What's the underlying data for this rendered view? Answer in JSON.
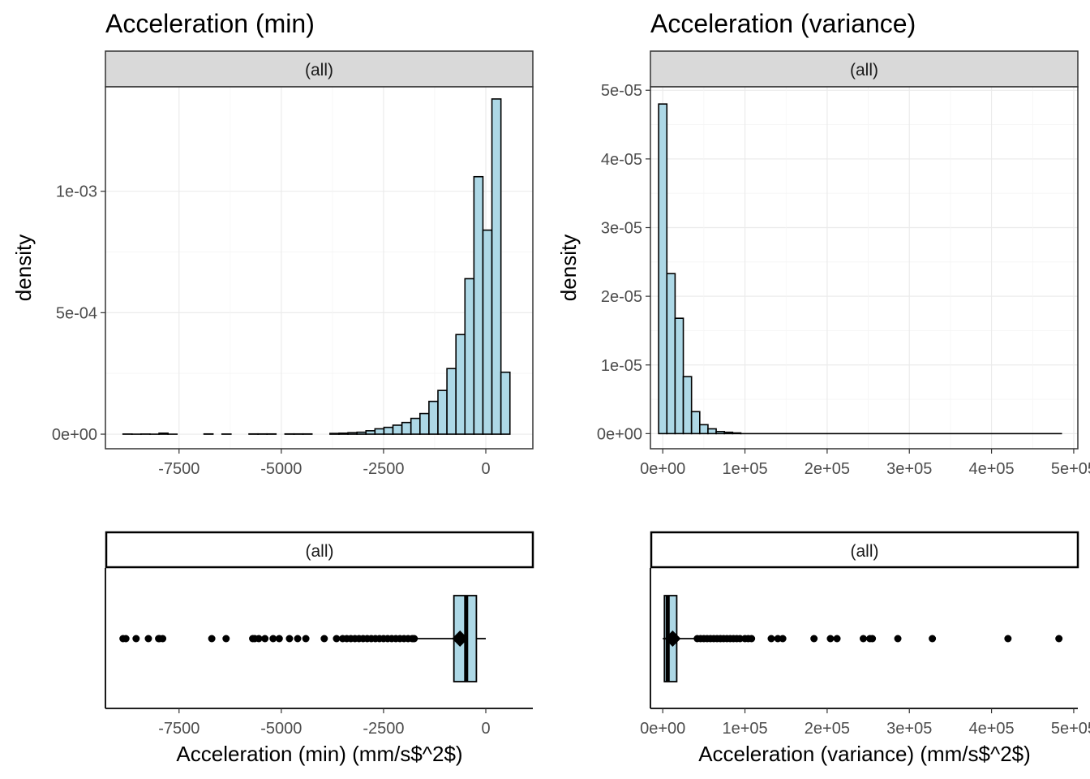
{
  "colors": {
    "bar_fill": "#add8e6",
    "bar_stroke": "#000000",
    "strip_fill": "#d9d9d9",
    "grid_major": "#ebebeb",
    "grid_minor": "#f5f5f5",
    "panel_border": "#333333"
  },
  "chart_data": [
    {
      "id": "hist_min",
      "type": "bar",
      "title": "Acceleration (min)",
      "strip": "(all)",
      "xlabel": "",
      "ylabel": "density",
      "xlim": [
        -9300,
        1150
      ],
      "ylim": [
        -6e-05,
        0.00143
      ],
      "x_ticks": [
        -7500,
        -5000,
        -2500,
        0
      ],
      "x_tick_labels": [
        "-7500",
        "-5000",
        "-2500",
        "0"
      ],
      "y_ticks": [
        0,
        0.0005,
        0.001
      ],
      "y_tick_labels": [
        "0e+00",
        "5e-04",
        "1e-03"
      ],
      "grid": true,
      "bins": [
        {
          "x0": -8870,
          "x1": -8650,
          "value": 5e-07
        },
        {
          "x0": -8650,
          "x1": -8430,
          "value": 0.0
        },
        {
          "x0": -8430,
          "x1": -8210,
          "value": 5e-07
        },
        {
          "x0": -8210,
          "x1": -7990,
          "value": 0.0
        },
        {
          "x0": -7990,
          "x1": -7770,
          "value": 4e-06
        },
        {
          "x0": -7770,
          "x1": -7550,
          "value": 0.0
        },
        {
          "x0": -6890,
          "x1": -6670,
          "value": 1e-06
        },
        {
          "x0": -6450,
          "x1": -6230,
          "value": 5e-07
        },
        {
          "x0": -5790,
          "x1": -5570,
          "value": 1e-06
        },
        {
          "x0": -5570,
          "x1": -5350,
          "value": 1e-06
        },
        {
          "x0": -5350,
          "x1": -5130,
          "value": 1e-06
        },
        {
          "x0": -4910,
          "x1": -4690,
          "value": 1e-06
        },
        {
          "x0": -4690,
          "x1": -4470,
          "value": 1e-06
        },
        {
          "x0": -4470,
          "x1": -4250,
          "value": 1e-06
        },
        {
          "x0": -3810,
          "x1": -3590,
          "value": 3e-06
        },
        {
          "x0": -3590,
          "x1": -3370,
          "value": 4e-06
        },
        {
          "x0": -3370,
          "x1": -3150,
          "value": 6e-06
        },
        {
          "x0": -3150,
          "x1": -2930,
          "value": 8e-06
        },
        {
          "x0": -2930,
          "x1": -2710,
          "value": 1.4e-05
        },
        {
          "x0": -2710,
          "x1": -2490,
          "value": 2.2e-05
        },
        {
          "x0": -2490,
          "x1": -2270,
          "value": 2.8e-05
        },
        {
          "x0": -2270,
          "x1": -2050,
          "value": 3.7e-05
        },
        {
          "x0": -2050,
          "x1": -1830,
          "value": 4.8e-05
        },
        {
          "x0": -1830,
          "x1": -1610,
          "value": 6.5e-05
        },
        {
          "x0": -1610,
          "x1": -1390,
          "value": 8.5e-05
        },
        {
          "x0": -1390,
          "x1": -1170,
          "value": 0.000135
        },
        {
          "x0": -1170,
          "x1": -950,
          "value": 0.00018
        },
        {
          "x0": -950,
          "x1": -730,
          "value": 0.00027
        },
        {
          "x0": -730,
          "x1": -510,
          "value": 0.00041
        },
        {
          "x0": -510,
          "x1": -290,
          "value": 0.00064
        },
        {
          "x0": -290,
          "x1": -70,
          "value": 0.00106
        },
        {
          "x0": -70,
          "x1": 150,
          "value": 0.00084
        },
        {
          "x0": 150,
          "x1": 370,
          "value": 0.00138
        },
        {
          "x0": 370,
          "x1": 590,
          "value": 0.000255
        }
      ]
    },
    {
      "id": "hist_var",
      "type": "bar",
      "title": "Acceleration (variance)",
      "strip": "(all)",
      "xlabel": "",
      "ylabel": "density",
      "xlim": [
        -15000,
        505000
      ],
      "ylim": [
        -2.2e-06,
        5.05e-05
      ],
      "x_ticks": [
        0,
        100000,
        200000,
        300000,
        400000,
        500000
      ],
      "x_tick_labels": [
        "0e+00",
        "1e+05",
        "2e+05",
        "3e+05",
        "4e+05",
        "5e+05"
      ],
      "y_ticks": [
        0,
        1e-05,
        2e-05,
        3e-05,
        4e-05,
        5e-05
      ],
      "y_tick_labels": [
        "0e+00",
        "1e-05",
        "2e-05",
        "3e-05",
        "4e-05",
        "5e-05"
      ],
      "grid": true,
      "bins": [
        {
          "x0": -5000,
          "x1": 5000,
          "value": 4.8e-05
        },
        {
          "x0": 5000,
          "x1": 15000,
          "value": 2.33e-05
        },
        {
          "x0": 15000,
          "x1": 25000,
          "value": 1.68e-05
        },
        {
          "x0": 25000,
          "x1": 35000,
          "value": 8.3e-06
        },
        {
          "x0": 35000,
          "x1": 45000,
          "value": 3.2e-06
        },
        {
          "x0": 45000,
          "x1": 55000,
          "value": 1.3e-06
        },
        {
          "x0": 55000,
          "x1": 65000,
          "value": 7e-07
        },
        {
          "x0": 65000,
          "x1": 75000,
          "value": 3e-07
        },
        {
          "x0": 75000,
          "x1": 85000,
          "value": 2e-07
        },
        {
          "x0": 85000,
          "x1": 95000,
          "value": 1e-07
        },
        {
          "x0": 95000,
          "x1": 485000,
          "value": 0.0
        }
      ]
    },
    {
      "id": "box_min",
      "type": "box",
      "strip": "(all)",
      "xlabel": "Acceleration (min) (mm/s$^2$)",
      "xlim": [
        -9300,
        1150
      ],
      "x_ticks": [
        -7500,
        -5000,
        -2500,
        0
      ],
      "x_tick_labels": [
        "-7500",
        "-5000",
        "-2500",
        "0"
      ],
      "box": {
        "q1": -780,
        "median": -480,
        "q3": -230,
        "whisker_low": -1700,
        "whisker_high": 0,
        "mean": -630
      },
      "outliers": [
        -8870,
        -8800,
        -8550,
        -8250,
        -8000,
        -7980,
        -7900,
        -6700,
        -6350,
        -5700,
        -5650,
        -5550,
        -5400,
        -5200,
        -5050,
        -4800,
        -4600,
        -4400,
        -3950,
        -3650,
        -3500,
        -3400,
        -3300,
        -3200,
        -3100,
        -3000,
        -2900,
        -2800,
        -2700,
        -2600,
        -2500,
        -2400,
        -2300,
        -2200,
        -2100,
        -2000,
        -1900,
        -1800,
        -1750
      ]
    },
    {
      "id": "box_var",
      "type": "box",
      "strip": "(all)",
      "xlabel": "Acceleration (variance) (mm/s$^2$)",
      "xlim": [
        -15000,
        505000
      ],
      "x_ticks": [
        0,
        100000,
        200000,
        300000,
        400000,
        500000
      ],
      "x_tick_labels": [
        "0e+00",
        "1e+05",
        "2e+05",
        "3e+05",
        "4e+05",
        "5e+05"
      ],
      "box": {
        "q1": 2000,
        "median": 6000,
        "q3": 17000,
        "whisker_low": 0,
        "whisker_high": 40000,
        "mean": 12000
      },
      "outliers": [
        42000,
        46000,
        50000,
        54000,
        58000,
        62000,
        66000,
        70000,
        74000,
        78000,
        82000,
        86000,
        90000,
        94000,
        100000,
        104000,
        108000,
        132000,
        140000,
        146000,
        184000,
        204000,
        212000,
        244000,
        252000,
        255000,
        286000,
        328000,
        420000,
        482000
      ]
    }
  ]
}
